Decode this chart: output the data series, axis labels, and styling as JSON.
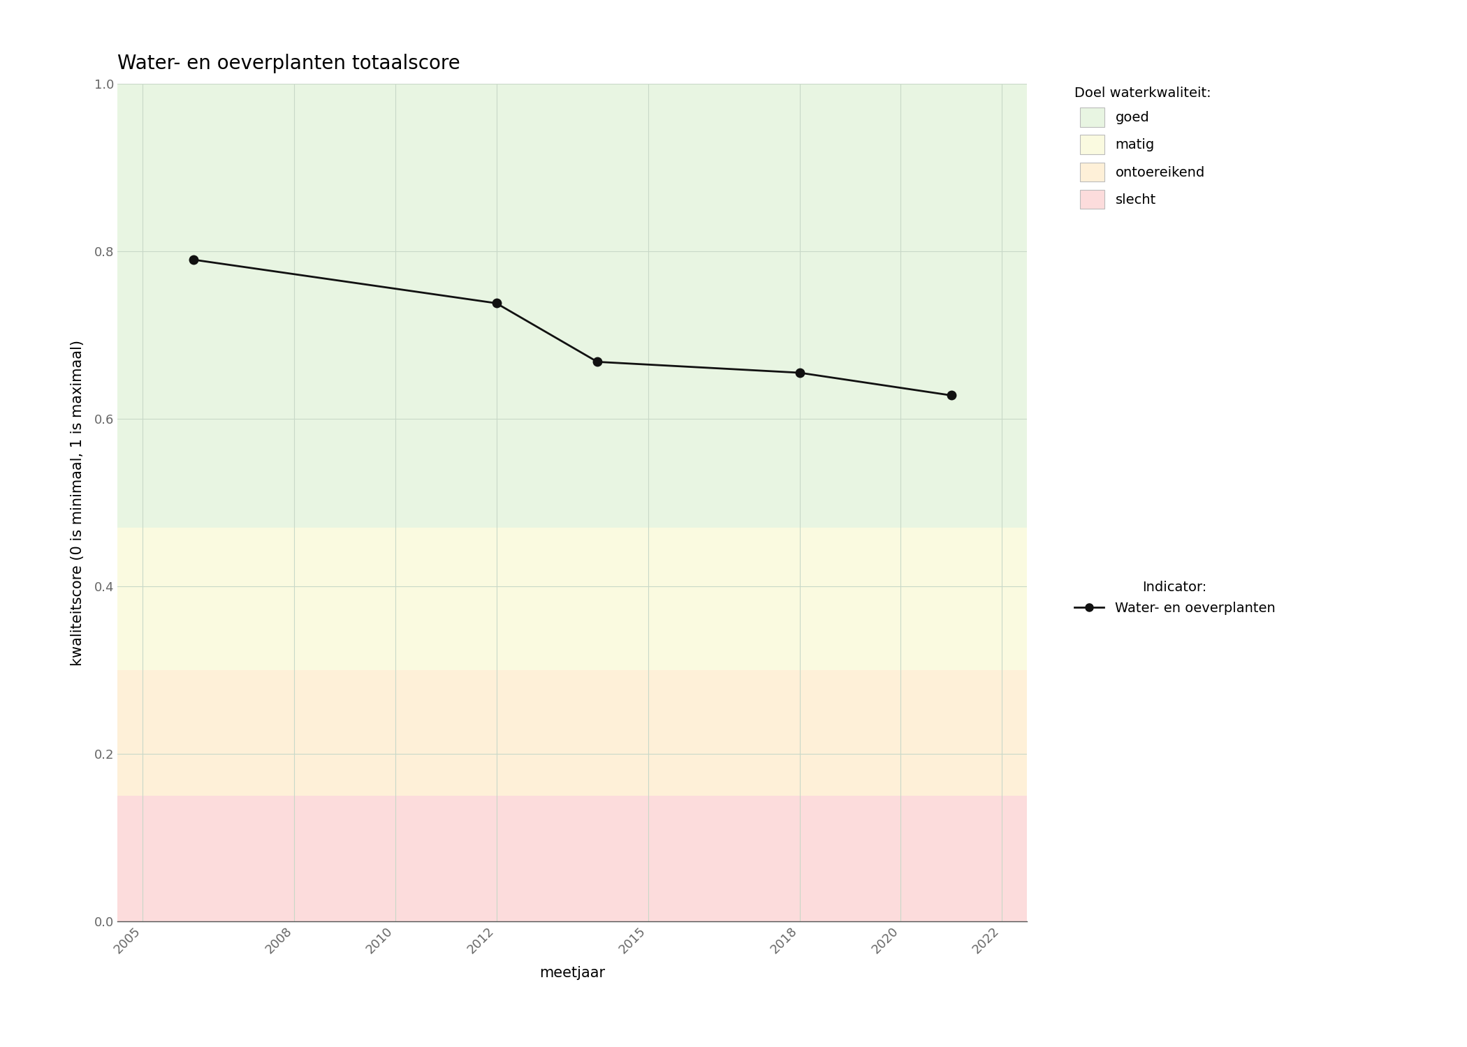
{
  "title": "Water- en oeverplanten totaalscore",
  "xlabel": "meetjaar",
  "ylabel": "kwaliteitscore (0 is minimaal, 1 is maximaal)",
  "xlim": [
    2004.5,
    2022.5
  ],
  "ylim": [
    0.0,
    1.0
  ],
  "xticks": [
    2005,
    2008,
    2010,
    2012,
    2015,
    2018,
    2020,
    2022
  ],
  "yticks": [
    0.0,
    0.2,
    0.4,
    0.6,
    0.8,
    1.0
  ],
  "data_x": [
    2006,
    2012,
    2014,
    2018,
    2021
  ],
  "data_y": [
    0.79,
    0.738,
    0.668,
    0.655,
    0.628
  ],
  "line_color": "#111111",
  "marker_color": "#111111",
  "marker_size": 9,
  "line_width": 2.0,
  "zones": [
    {
      "label": "goed",
      "ymin": 0.47,
      "ymax": 1.0,
      "color": "#e8f5e2"
    },
    {
      "label": "matig",
      "ymin": 0.3,
      "ymax": 0.47,
      "color": "#fafae0"
    },
    {
      "label": "ontoereikend",
      "ymin": 0.15,
      "ymax": 0.3,
      "color": "#fef0d8"
    },
    {
      "label": "slecht",
      "ymin": 0.0,
      "ymax": 0.15,
      "color": "#fcdcdc"
    }
  ],
  "legend_title_quality": "Doel waterkwaliteit:",
  "legend_title_indicator": "Indicator:",
  "legend_indicator_label": "Water- en oeverplanten",
  "background_color": "#ffffff",
  "grid_color": "#c8d8c8",
  "title_fontsize": 20,
  "axis_label_fontsize": 15,
  "tick_fontsize": 13,
  "legend_fontsize": 14
}
